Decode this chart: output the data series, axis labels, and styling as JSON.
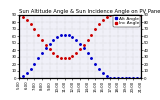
{
  "title": "Sun Altitude Angle & Sun Incidence Angle on PV Panels",
  "legend_blue": "Alt Angle",
  "legend_red": "Inc Angle",
  "background_color": "#ffffff",
  "grid_color": "#bbbbbb",
  "plot_bg": "#f0f0f8",
  "blue_color": "#0000cc",
  "red_color": "#cc0000",
  "blue_x": [
    0,
    0.5,
    1,
    1.5,
    2,
    2.5,
    3,
    3.5,
    4,
    4.5,
    5,
    5.5,
    6,
    6.5,
    7,
    7.5,
    8,
    8.5,
    9,
    9.5,
    10,
    10.5,
    11,
    11.5,
    12,
    12.5,
    13,
    13.5,
    14,
    14.5,
    15,
    15.5,
    16
  ],
  "blue_y": [
    0,
    3,
    7,
    13,
    20,
    28,
    36,
    43,
    49,
    54,
    58,
    61,
    62,
    61,
    58,
    54,
    49,
    43,
    36,
    28,
    20,
    13,
    7,
    3,
    0,
    0,
    0,
    0,
    0,
    0,
    0,
    0,
    0
  ],
  "red_x": [
    0,
    0.5,
    1,
    1.5,
    2,
    2.5,
    3,
    3.5,
    4,
    4.5,
    5,
    5.5,
    6,
    6.5,
    7,
    7.5,
    8,
    8.5,
    9,
    9.5,
    10,
    10.5,
    11,
    11.5,
    12,
    12.5,
    13,
    13.5,
    14,
    14.5,
    15,
    15.5,
    16
  ],
  "red_y": [
    90,
    87,
    83,
    77,
    70,
    62,
    54,
    47,
    41,
    36,
    32,
    29,
    28,
    29,
    32,
    36,
    41,
    47,
    54,
    62,
    70,
    77,
    83,
    87,
    90,
    90,
    90,
    90,
    90,
    90,
    90,
    90,
    90
  ],
  "ylim": [
    0,
    90
  ],
  "xlim": [
    0,
    16
  ],
  "ytick_values": [
    0,
    10,
    20,
    30,
    40,
    50,
    60,
    70,
    80,
    90
  ],
  "xtick_positions": [
    0,
    1,
    2,
    3,
    4,
    5,
    6,
    7,
    8,
    9,
    10,
    11,
    12,
    13,
    14,
    15,
    16
  ],
  "xtick_labels": [
    "5:00",
    "6:00",
    "7:00",
    "8:00",
    "9:00",
    "10:00",
    "11:00",
    "12:00",
    "13:00",
    "14:00",
    "15:00",
    "16:00",
    "17:00",
    "18:00",
    "19:00",
    "20:00",
    "21:00"
  ],
  "title_fontsize": 3.8,
  "tick_fontsize": 2.8,
  "legend_fontsize": 3.2,
  "dot_size": 1.2,
  "fig_width": 1.6,
  "fig_height": 1.0,
  "dpi": 100
}
